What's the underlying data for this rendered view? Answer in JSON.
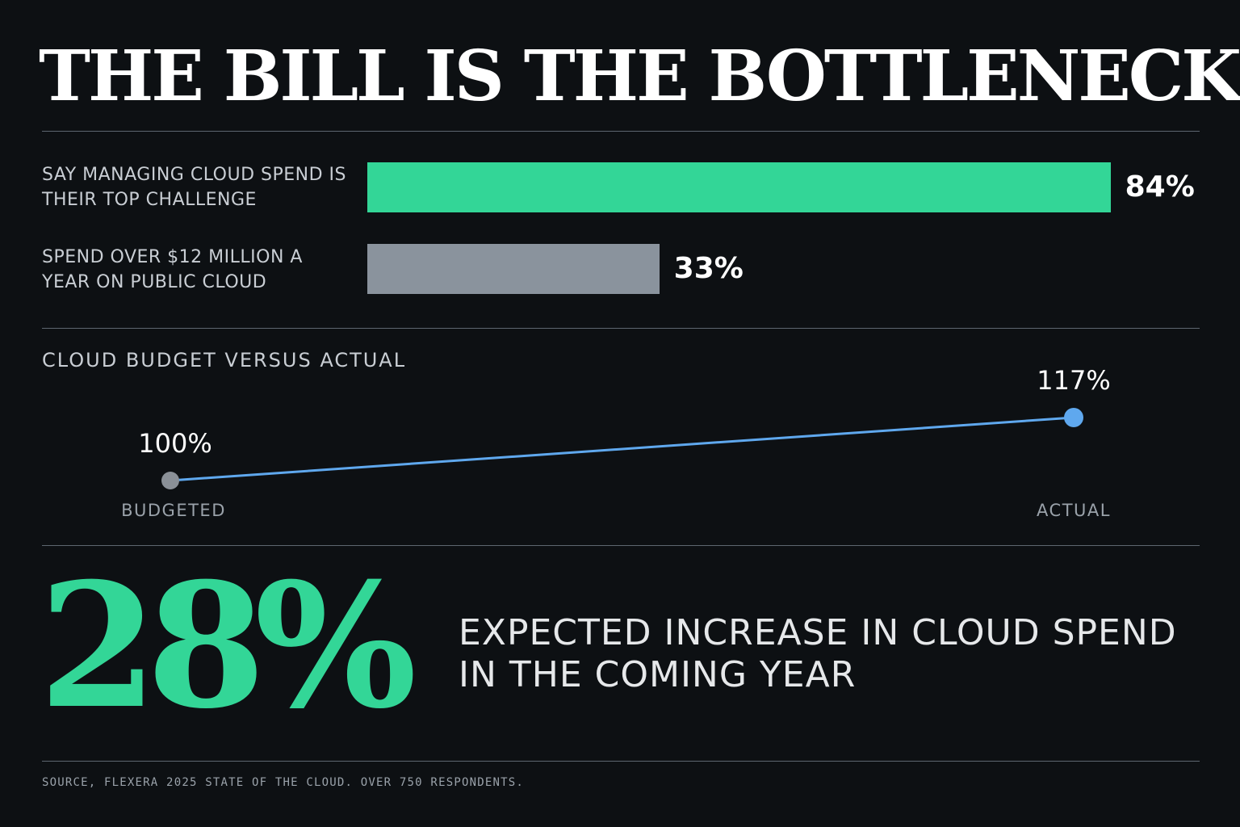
{
  "headline": "THE BILL IS THE BOTTLENECK",
  "colors": {
    "background": "#0d1013",
    "accent_green": "#33d697",
    "bar_grey": "#8a939d",
    "line_blue": "#5fa8ee",
    "budget_point_grey": "#8a9097"
  },
  "chart_data": [
    {
      "type": "bar",
      "orientation": "horizontal",
      "categories": [
        "SAY MANAGING CLOUD SPEND IS THEIR TOP CHALLENGE",
        "SPEND OVER $12 MILLION A YEAR ON PUBLIC CLOUD"
      ],
      "values": [
        84,
        33
      ],
      "value_labels": [
        "84%",
        "33%"
      ],
      "bar_colors": [
        "#33d697",
        "#8a939d"
      ],
      "xlim": [
        0,
        100
      ],
      "grid": false
    },
    {
      "type": "line",
      "title": "CLOUD BUDGET VERSUS ACTUAL",
      "categories": [
        "BUDGETED",
        "ACTUAL"
      ],
      "values": [
        100,
        117
      ],
      "value_labels": [
        "100%",
        "117%"
      ],
      "point_colors": [
        "#8a9097",
        "#5fa8ee"
      ],
      "ylim": [
        100,
        117
      ],
      "grid": false
    }
  ],
  "callout": {
    "value": "28%",
    "caption": "EXPECTED INCREASE IN CLOUD SPEND IN THE COMING YEAR"
  },
  "source": "SOURCE, FLEXERA 2025 STATE OF THE CLOUD. OVER 750 RESPONDENTS."
}
